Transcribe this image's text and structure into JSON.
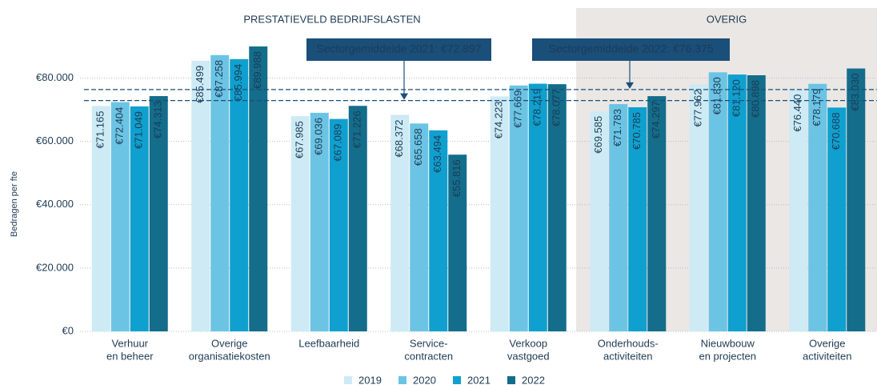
{
  "chart_data": {
    "type": "bar",
    "group_labels": [
      "PRESTATIEVELD BEDRIJFSLASTEN",
      "OVERIG"
    ],
    "y_label": "Bedragen per fte",
    "categories": [
      [
        "Verhuur",
        "en beheer"
      ],
      [
        "Overige",
        "organisatiekosten"
      ],
      [
        "Leefbaarheid"
      ],
      [
        "Service-",
        "contracten"
      ],
      [
        "Verkoop",
        "vastgoed"
      ],
      [
        "Onderhouds-",
        "activiteiten"
      ],
      [
        "Nieuwbouw",
        "en projecten"
      ],
      [
        "Overige",
        "activiteiten"
      ]
    ],
    "series": [
      {
        "name": "2019",
        "color": "#cdeaf5",
        "values": [
          71165,
          85499,
          67985,
          68372,
          74223,
          69585,
          77962,
          76440
        ],
        "value_labels": [
          "€71.165",
          "€85.499",
          "€67.985",
          "€68.372",
          "€74.223",
          "€69.585",
          "€77.962",
          "€76.440"
        ]
      },
      {
        "name": "2020",
        "color": "#6cc4e4",
        "values": [
          72404,
          87258,
          69036,
          65658,
          77669,
          71783,
          81830,
          78179
        ],
        "value_labels": [
          "€72.404",
          "€87.258",
          "€69.036",
          "€65.658",
          "€77.669",
          "€71.783",
          "€81.830",
          "€78.179"
        ]
      },
      {
        "name": "2021",
        "color": "#0fa0cf",
        "values": [
          71049,
          85994,
          67089,
          63494,
          78219,
          70785,
          81120,
          70688
        ],
        "value_labels": [
          "€71.049",
          "€85.994",
          "€67.089",
          "€63.494",
          "€78.219",
          "€70.785",
          "€81.120",
          "€70.688"
        ]
      },
      {
        "name": "2022",
        "color": "#136d8b",
        "values": [
          74313,
          89988,
          71226,
          55816,
          78077,
          74297,
          80898,
          83030
        ],
        "value_labels": [
          "€74.313",
          "€89.988",
          "€71.226",
          "€55.816",
          "€78.077",
          "€74.297",
          "€80.898",
          "€83.030"
        ]
      }
    ],
    "reference_lines": [
      {
        "label": "Sectorgemiddelde 2021: €72.897",
        "value": 72897
      },
      {
        "label": "Sectorgemiddelde 2022: €76.375",
        "value": 76375
      }
    ],
    "ylim": [
      0,
      90000
    ],
    "yticks": [
      {
        "value": 0,
        "label": "€0"
      },
      {
        "value": 20000,
        "label": "€20.000"
      },
      {
        "value": 40000,
        "label": "€40.000"
      },
      {
        "value": 60000,
        "label": "€60.000"
      },
      {
        "value": 80000,
        "label": "€80.000"
      }
    ],
    "grid": true
  }
}
